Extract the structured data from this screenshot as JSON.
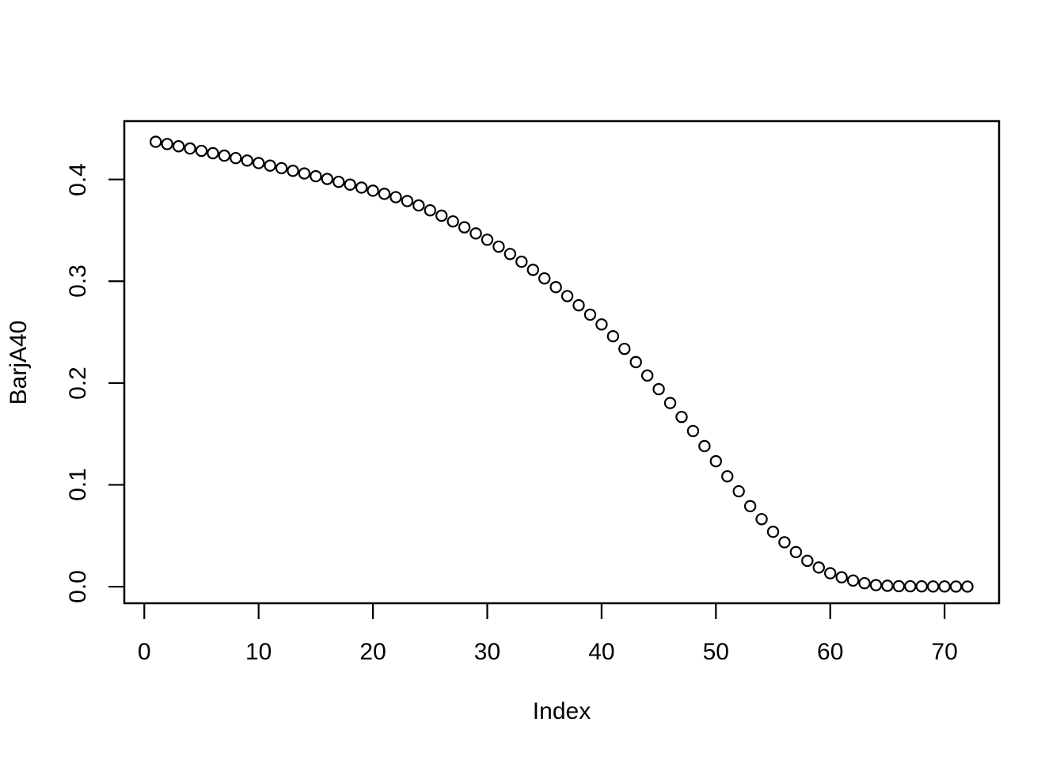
{
  "figure": {
    "background": "#ffffff",
    "foreground": "#000000"
  },
  "chart_data": {
    "type": "scatter",
    "title": "",
    "xlabel": "Index",
    "ylabel": "BarjA40",
    "series_name": "BarjA40",
    "marker": {
      "shape": "open-circle",
      "color": "#000000"
    },
    "grid": false,
    "legend": null,
    "xlim": [
      -1.75,
      74.77
    ],
    "ylim": [
      -0.0163,
      0.4573
    ],
    "x_ticks": [
      0,
      10,
      20,
      30,
      40,
      50,
      60,
      70
    ],
    "x_tick_labels": [
      "0",
      "10",
      "20",
      "30",
      "40",
      "50",
      "60",
      "70"
    ],
    "y_ticks": [
      0.0,
      0.1,
      0.2,
      0.3,
      0.4
    ],
    "y_tick_labels": [
      "0.0",
      "0.1",
      "0.2",
      "0.3",
      "0.4"
    ],
    "x": [
      1,
      2,
      3,
      4,
      5,
      6,
      7,
      8,
      9,
      10,
      11,
      12,
      13,
      14,
      15,
      16,
      17,
      18,
      19,
      20,
      21,
      22,
      23,
      24,
      25,
      26,
      27,
      28,
      29,
      30,
      31,
      32,
      33,
      34,
      35,
      36,
      37,
      38,
      39,
      40,
      41,
      42,
      43,
      44,
      45,
      46,
      47,
      48,
      49,
      50,
      51,
      52,
      53,
      54,
      55,
      56,
      57,
      58,
      59,
      60,
      61,
      62,
      63,
      64,
      65,
      66,
      67,
      68,
      69,
      70,
      71,
      72
    ],
    "y": [
      0.437,
      0.4348,
      0.4326,
      0.4304,
      0.4281,
      0.4258,
      0.4234,
      0.421,
      0.4186,
      0.4161,
      0.4136,
      0.4111,
      0.4085,
      0.4059,
      0.4032,
      0.4005,
      0.3977,
      0.3949,
      0.392,
      0.389,
      0.3859,
      0.3826,
      0.3788,
      0.3745,
      0.3697,
      0.3644,
      0.3588,
      0.353,
      0.347,
      0.3408,
      0.334,
      0.3268,
      0.3192,
      0.3112,
      0.3028,
      0.2942,
      0.2854,
      0.2764,
      0.2672,
      0.2576,
      0.246,
      0.2336,
      0.2206,
      0.2074,
      0.194,
      0.1804,
      0.1667,
      0.1529,
      0.1381,
      0.1232,
      0.1084,
      0.0937,
      0.0791,
      0.0663,
      0.0539,
      0.0436,
      0.034,
      0.0254,
      0.0188,
      0.0132,
      0.0092,
      0.006,
      0.0034,
      0.0015,
      0.0009,
      0.0005,
      0.0004,
      0.0003,
      0.0002,
      0.0002,
      0.0001,
      0.0001
    ]
  }
}
